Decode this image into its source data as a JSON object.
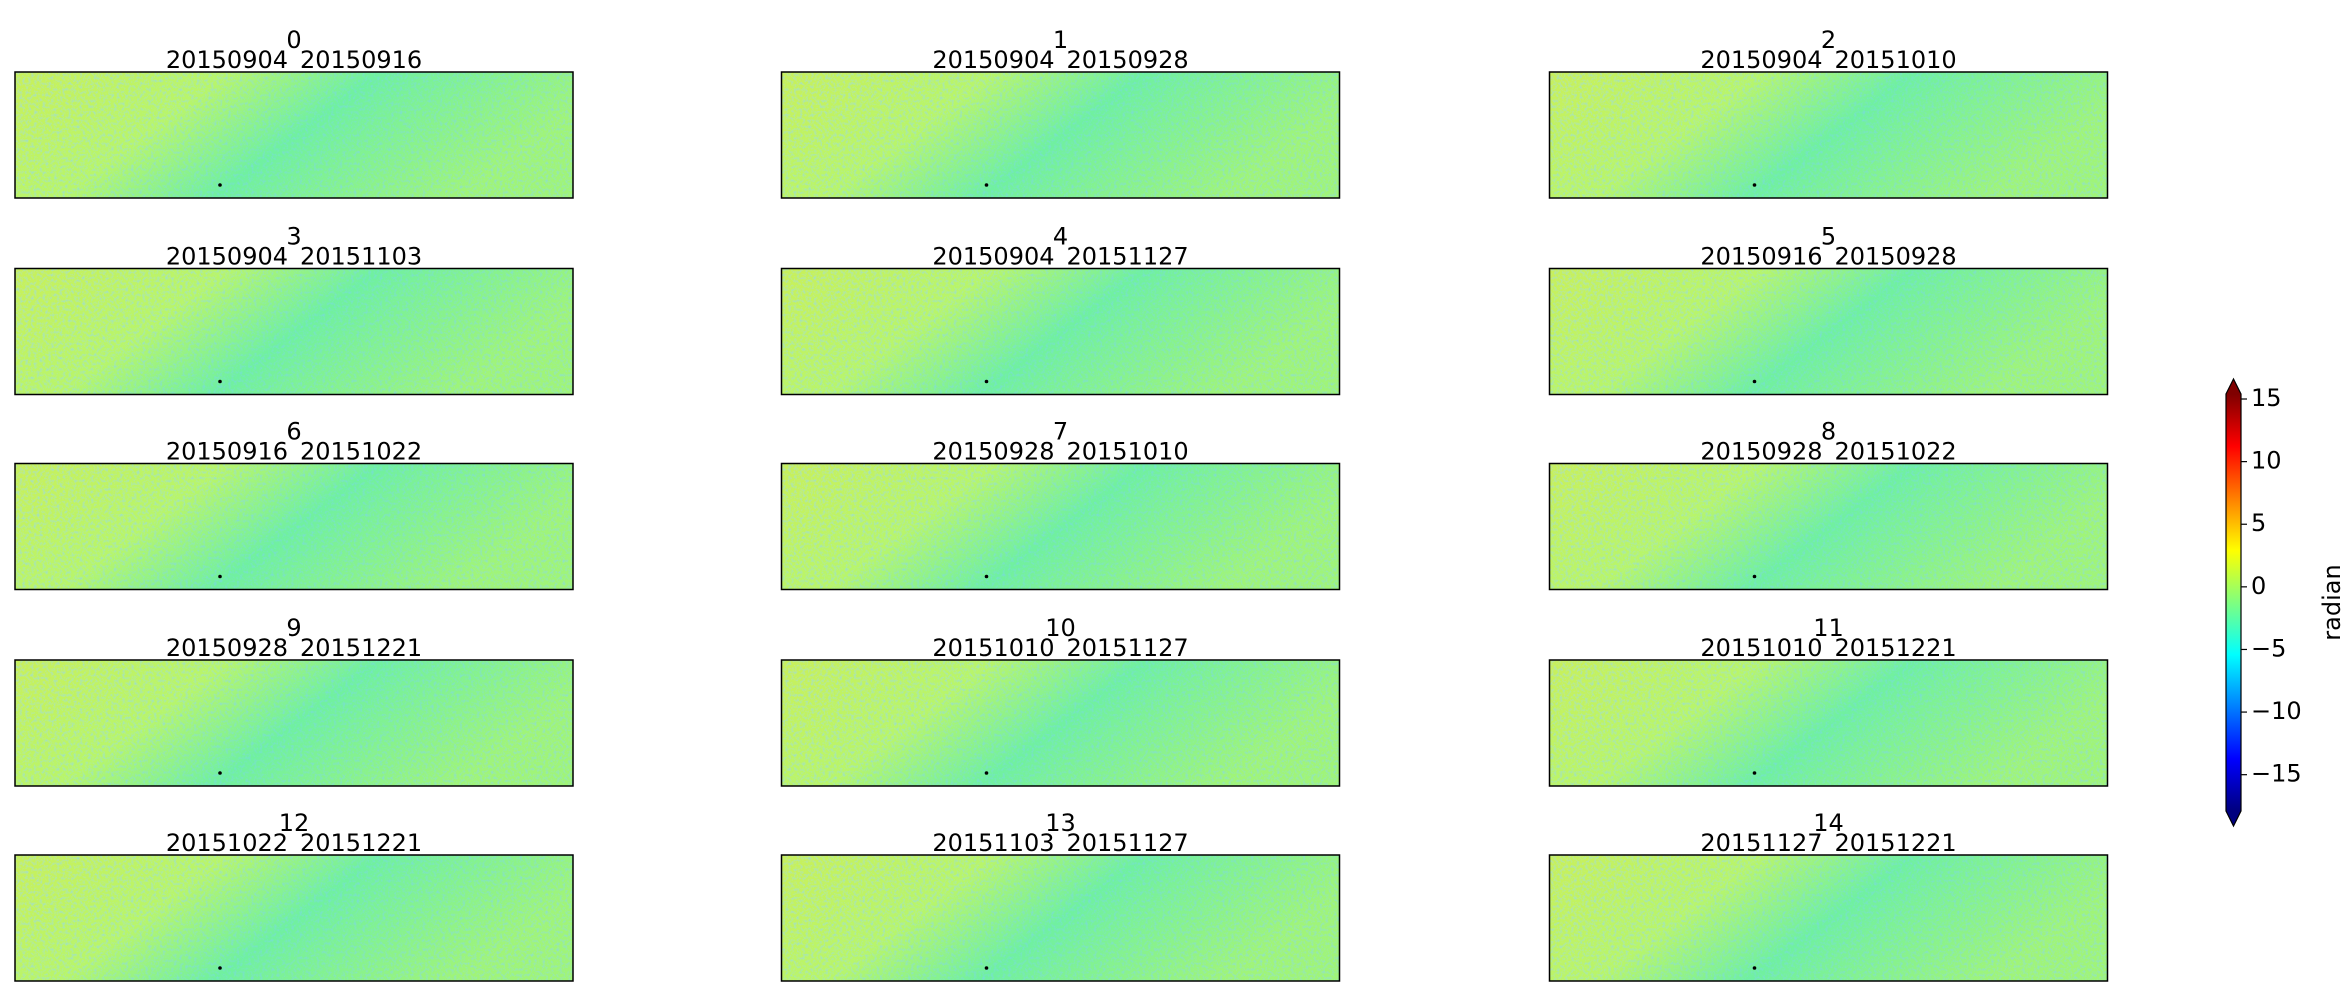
{
  "chart_data": {
    "type": "image_grid",
    "panels": [
      {
        "id": "0",
        "dates": "20150904_20150916"
      },
      {
        "id": "1",
        "dates": "20150904_20150928"
      },
      {
        "id": "2",
        "dates": "20150904_20151010"
      },
      {
        "id": "3",
        "dates": "20150904_20151103"
      },
      {
        "id": "4",
        "dates": "20150904_20151127"
      },
      {
        "id": "5",
        "dates": "20150916_20150928"
      },
      {
        "id": "6",
        "dates": "20150916_20151022"
      },
      {
        "id": "7",
        "dates": "20150928_20151010"
      },
      {
        "id": "8",
        "dates": "20150928_20151022"
      },
      {
        "id": "9",
        "dates": "20150928_20151221"
      },
      {
        "id": "10",
        "dates": "20151010_20151127"
      },
      {
        "id": "11",
        "dates": "20151010_20151221"
      },
      {
        "id": "12",
        "dates": "20151022_20151221"
      },
      {
        "id": "13",
        "dates": "20151103_20151127"
      },
      {
        "id": "14",
        "dates": "20151127_20151221"
      }
    ],
    "colorbar": {
      "label": "radian",
      "lim": [
        -17.9,
        15.4
      ],
      "ticks": [
        {
          "value": -15,
          "label": "−15"
        },
        {
          "value": -10,
          "label": "−10"
        },
        {
          "value": -5,
          "label": "−5"
        },
        0,
        5,
        10,
        15
      ],
      "colormap": [
        "#00007f",
        "#0000ff",
        "#007fff",
        "#00ffff",
        "#7fff7f",
        "#ffff00",
        "#ff7f00",
        "#ff0000",
        "#7f0000"
      ]
    }
  }
}
